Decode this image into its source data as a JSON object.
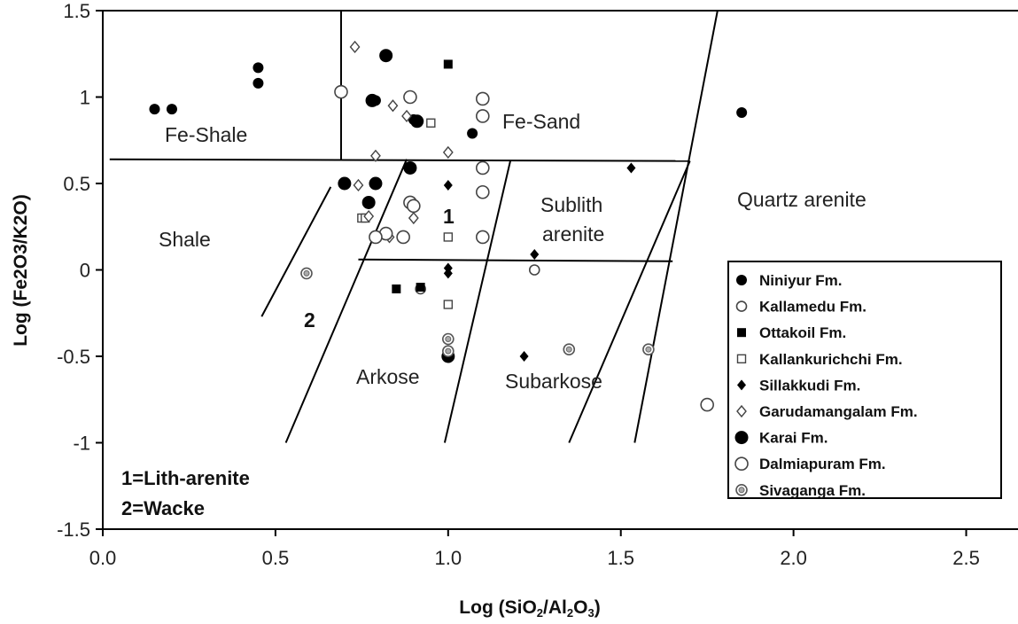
{
  "chart_data": {
    "type": "scatter",
    "title": "",
    "xlabel": "Log (SiO",
    "xlabel_sub1": "2",
    "xlabel_mid": "/Al",
    "xlabel_sub2": "2",
    "xlabel_mid2": "O",
    "xlabel_sub3": "3",
    "xlabel_end": ")",
    "ylabel": "Log (Fe2O3/K2O)",
    "xlim": [
      0,
      2.65
    ],
    "ylim": [
      -1.5,
      1.5
    ],
    "x_ticks": [
      "0.0",
      "0.5",
      "1.0",
      "1.5",
      "2.0",
      "2.5"
    ],
    "y_ticks": [
      "1.5",
      "1",
      "0.5",
      "0",
      "-0.5",
      "-1",
      "-1.5"
    ],
    "grid": false,
    "legend_position": "bottom-right",
    "field_labels": {
      "fe_shale": "Fe-Shale",
      "fe_sand": "Fe-Sand",
      "shale": "Shale",
      "sublith_1": "Sublith",
      "sublith_2": "arenite",
      "quartz_arenite": "Quartz arenite",
      "arkose": "Arkose",
      "subarkose": "Subarkose",
      "num_1": "1",
      "num_2": "2"
    },
    "notes": [
      "1=Lith-arenite",
      "2=Wacke"
    ],
    "boundaries": [
      {
        "x1": 0.02,
        "y1": 0.64,
        "x2": 1.7,
        "y2": 0.63
      },
      {
        "x1": 0.69,
        "y1": 1.5,
        "x2": 0.69,
        "y2": 0.64
      },
      {
        "x1": 0.74,
        "y1": 0.06,
        "x2": 1.65,
        "y2": 0.05
      },
      {
        "x1": 0.46,
        "y1": -0.27,
        "x2": 0.66,
        "y2": 0.48
      },
      {
        "x1": 0.53,
        "y1": -1.0,
        "x2": 0.88,
        "y2": 0.64
      },
      {
        "x1": 0.99,
        "y1": -1.0,
        "x2": 1.18,
        "y2": 0.63
      },
      {
        "x1": 1.35,
        "y1": -1.0,
        "x2": 1.7,
        "y2": 0.63
      },
      {
        "x1": 1.54,
        "y1": -1.0,
        "x2": 1.78,
        "y2": 1.5
      }
    ],
    "series": [
      {
        "name": "Niniyur Fm.",
        "marker": "filled-circle",
        "points": [
          [
            0.15,
            0.93
          ],
          [
            0.2,
            0.93
          ],
          [
            0.45,
            1.17
          ],
          [
            0.45,
            1.08
          ],
          [
            1.85,
            0.91
          ],
          [
            1.07,
            0.79
          ],
          [
            0.9,
            0.87
          ],
          [
            0.79,
            0.98
          ]
        ]
      },
      {
        "name": "Kallamedu Fm.",
        "marker": "open-circle",
        "points": [
          [
            0.92,
            -0.11
          ],
          [
            1.25,
            0.0
          ]
        ]
      },
      {
        "name": "Ottakoil Fm.",
        "marker": "filled-square",
        "points": [
          [
            1.0,
            1.19
          ],
          [
            0.85,
            -0.11
          ],
          [
            0.92,
            -0.1
          ]
        ]
      },
      {
        "name": "Kallankurichchi Fm.",
        "marker": "open-square",
        "points": [
          [
            0.95,
            0.85
          ],
          [
            1.0,
            0.19
          ],
          [
            1.0,
            -0.2
          ],
          [
            0.75,
            0.3
          ],
          [
            0.76,
            0.3
          ]
        ]
      },
      {
        "name": "Sillakkudi Fm.",
        "marker": "filled-diamond",
        "points": [
          [
            1.53,
            0.59
          ],
          [
            1.25,
            0.09
          ],
          [
            1.22,
            -0.5
          ],
          [
            1.0,
            0.49
          ],
          [
            1.0,
            0.01
          ],
          [
            1.0,
            -0.02
          ]
        ]
      },
      {
        "name": "Garudamangalam Fm.",
        "marker": "open-diamond",
        "points": [
          [
            0.73,
            1.29
          ],
          [
            0.84,
            0.95
          ],
          [
            0.88,
            0.89
          ],
          [
            1.0,
            0.68
          ],
          [
            0.79,
            0.66
          ],
          [
            0.74,
            0.49
          ],
          [
            0.77,
            0.31
          ],
          [
            0.83,
            0.19
          ],
          [
            0.9,
            0.3
          ]
        ]
      },
      {
        "name": "Karai Fm.",
        "marker": "filled-circle-large",
        "points": [
          [
            0.82,
            1.24
          ],
          [
            0.78,
            0.98
          ],
          [
            0.91,
            0.86
          ],
          [
            0.89,
            0.59
          ],
          [
            0.7,
            0.5
          ],
          [
            0.79,
            0.5
          ],
          [
            0.77,
            0.39
          ],
          [
            1.0,
            -0.5
          ]
        ]
      },
      {
        "name": "Dalmiapuram Fm.",
        "marker": "open-circle-large",
        "points": [
          [
            0.69,
            1.03
          ],
          [
            0.89,
            1.0
          ],
          [
            1.1,
            0.99
          ],
          [
            1.1,
            0.89
          ],
          [
            1.1,
            0.59
          ],
          [
            1.1,
            0.45
          ],
          [
            0.89,
            0.39
          ],
          [
            0.9,
            0.37
          ],
          [
            0.82,
            0.21
          ],
          [
            0.79,
            0.19
          ],
          [
            0.87,
            0.19
          ],
          [
            1.1,
            0.19
          ],
          [
            1.75,
            -0.78
          ]
        ]
      },
      {
        "name": "Sivaganga Fm.",
        "marker": "dotted-circle",
        "points": [
          [
            0.59,
            -0.02
          ],
          [
            1.0,
            -0.4
          ],
          [
            1.0,
            -0.47
          ],
          [
            1.35,
            -0.46
          ],
          [
            1.58,
            -0.46
          ]
        ]
      }
    ]
  }
}
